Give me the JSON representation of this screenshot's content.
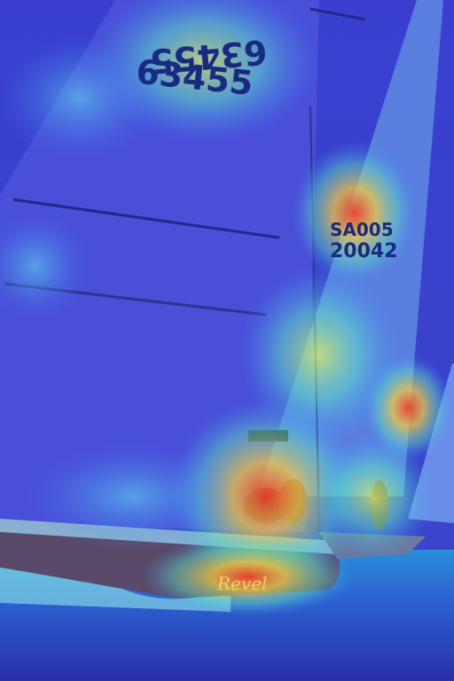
{
  "image": {
    "sail_numbers": [
      "63455",
      "20042"
    ],
    "sail_code": "SA005",
    "hull_name": "Revel"
  }
}
